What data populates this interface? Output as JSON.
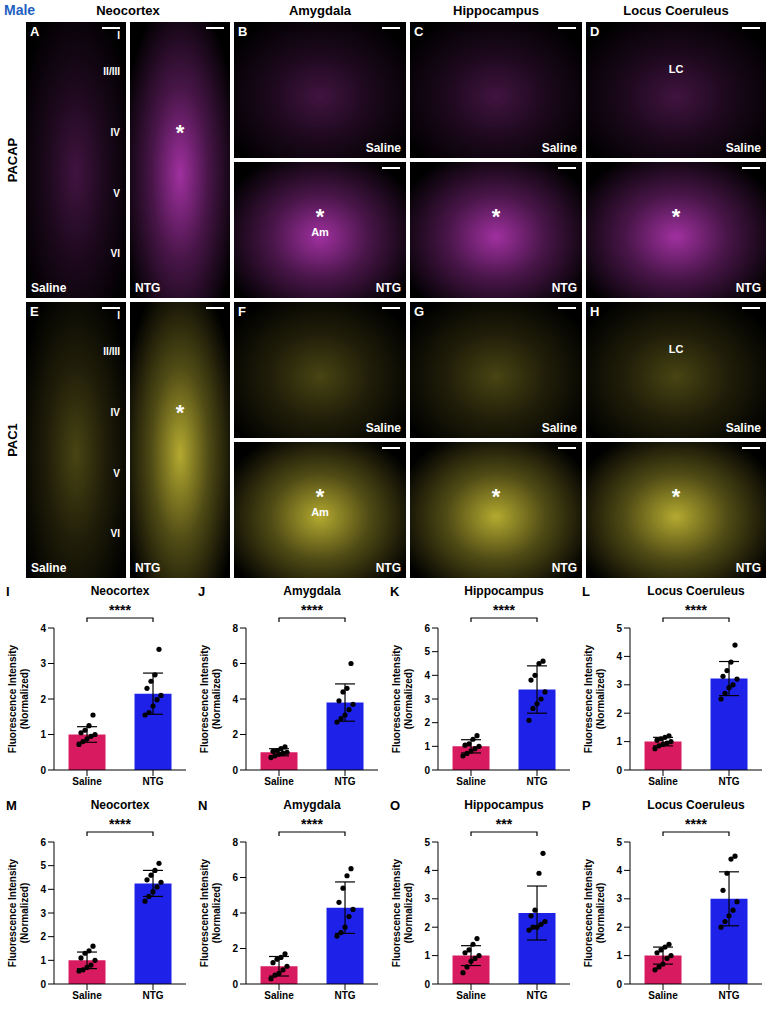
{
  "figure": {
    "sex": "Male",
    "column_titles": [
      "Neocortex",
      "Amygdala",
      "Hippocampus",
      "Locus Coeruleus"
    ],
    "row_labels": [
      "PACAP",
      "PAC1"
    ]
  },
  "image_panels": [
    {
      "letter": "A",
      "subpanels": [
        {
          "condition": "Saline",
          "layers": [
            "I",
            "II/III",
            "IV",
            "V",
            "VI"
          ]
        },
        {
          "condition": "NTG",
          "asterisk": "*"
        }
      ]
    },
    {
      "letter": "B",
      "subpanels": [
        {
          "condition": "Saline"
        },
        {
          "condition": "NTG",
          "asterisk": "*",
          "region_label": "Am"
        }
      ]
    },
    {
      "letter": "C",
      "subpanels": [
        {
          "condition": "Saline"
        },
        {
          "condition": "NTG",
          "asterisk": "*"
        }
      ]
    },
    {
      "letter": "D",
      "subpanels": [
        {
          "condition": "Saline",
          "region_label": "LC"
        },
        {
          "condition": "NTG",
          "asterisk": "*"
        }
      ]
    },
    {
      "letter": "E",
      "subpanels": [
        {
          "condition": "Saline",
          "layers": [
            "I",
            "II/III",
            "IV",
            "V",
            "VI"
          ]
        },
        {
          "condition": "NTG",
          "asterisk": "*"
        }
      ]
    },
    {
      "letter": "F",
      "subpanels": [
        {
          "condition": "Saline"
        },
        {
          "condition": "NTG",
          "asterisk": "*",
          "region_label": "Am"
        }
      ]
    },
    {
      "letter": "G",
      "subpanels": [
        {
          "condition": "Saline"
        },
        {
          "condition": "NTG",
          "asterisk": "*"
        }
      ]
    },
    {
      "letter": "H",
      "subpanels": [
        {
          "condition": "Saline",
          "region_label": "LC"
        },
        {
          "condition": "NTG",
          "asterisk": "*"
        }
      ]
    }
  ],
  "chart_data": [
    {
      "type": "bar",
      "letter": "I",
      "title": "Neocortex",
      "ylabel": "Fluorescence Intensity (Normalized)",
      "categories": [
        "Saline",
        "NTG"
      ],
      "values": [
        1.0,
        2.15
      ],
      "errors": [
        0.22,
        0.58
      ],
      "points": [
        [
          0.72,
          0.8,
          0.88,
          0.95,
          1.0,
          1.05,
          1.12,
          1.25,
          1.55
        ],
        [
          1.55,
          1.62,
          1.8,
          1.98,
          2.1,
          2.3,
          2.5,
          2.68,
          3.4
        ]
      ],
      "colors": [
        "#d81b60",
        "#1e22e8"
      ],
      "ylim": [
        0,
        4
      ],
      "yticks": [
        0,
        1,
        2,
        3,
        4
      ],
      "significance": "****"
    },
    {
      "type": "bar",
      "letter": "J",
      "title": "Amygdala",
      "ylabel": "Fluorescence Intensity (Normalized)",
      "categories": [
        "Saline",
        "NTG"
      ],
      "values": [
        1.0,
        3.8
      ],
      "errors": [
        0.2,
        1.05
      ],
      "points": [
        [
          0.7,
          0.8,
          0.9,
          0.95,
          1.0,
          1.05,
          1.1,
          1.2,
          1.3
        ],
        [
          2.7,
          2.9,
          3.1,
          3.4,
          3.7,
          3.9,
          4.4,
          4.6,
          6.0
        ]
      ],
      "colors": [
        "#d81b60",
        "#1e22e8"
      ],
      "ylim": [
        0,
        8
      ],
      "yticks": [
        0,
        2,
        4,
        6,
        8
      ],
      "significance": "****"
    },
    {
      "type": "bar",
      "letter": "K",
      "title": "Hippocampus",
      "ylabel": "Fluorescence Intensity (Normalized)",
      "categories": [
        "Saline",
        "NTG"
      ],
      "values": [
        1.0,
        3.4
      ],
      "errors": [
        0.28,
        1.0
      ],
      "points": [
        [
          0.6,
          0.7,
          0.8,
          0.9,
          1.0,
          1.05,
          1.1,
          1.3,
          1.45
        ],
        [
          2.1,
          2.6,
          2.8,
          3.0,
          3.3,
          3.8,
          4.0,
          4.5,
          4.6
        ]
      ],
      "colors": [
        "#d81b60",
        "#1e22e8"
      ],
      "ylim": [
        0,
        6
      ],
      "yticks": [
        0,
        1,
        2,
        3,
        4,
        5,
        6
      ],
      "significance": "****"
    },
    {
      "type": "bar",
      "letter": "L",
      "title": "Locus Coeruleus",
      "ylabel": "Fluorescence Intensity (Normalized)",
      "categories": [
        "Saline",
        "NTG"
      ],
      "values": [
        1.0,
        3.22
      ],
      "errors": [
        0.15,
        0.6
      ],
      "points": [
        [
          0.75,
          0.85,
          0.9,
          0.95,
          1.0,
          1.05,
          1.1,
          1.15,
          1.2
        ],
        [
          2.5,
          2.7,
          2.9,
          3.0,
          3.2,
          3.3,
          3.5,
          3.8,
          4.4
        ]
      ],
      "colors": [
        "#d81b60",
        "#1e22e8"
      ],
      "ylim": [
        0,
        5
      ],
      "yticks": [
        0,
        1,
        2,
        3,
        4,
        5
      ],
      "significance": "****"
    },
    {
      "type": "bar",
      "letter": "M",
      "title": "Neocortex",
      "ylabel": "Fluorescence Intensity (Normalized)",
      "categories": [
        "Saline",
        "NTG"
      ],
      "values": [
        1.0,
        4.25
      ],
      "errors": [
        0.35,
        0.55
      ],
      "points": [
        [
          0.55,
          0.6,
          0.7,
          0.8,
          1.0,
          1.1,
          1.3,
          1.4,
          1.6
        ],
        [
          3.5,
          3.7,
          3.9,
          4.1,
          4.3,
          4.4,
          4.6,
          4.8,
          5.1
        ]
      ],
      "colors": [
        "#d81b60",
        "#1e22e8"
      ],
      "ylim": [
        0,
        6
      ],
      "yticks": [
        0,
        1,
        2,
        3,
        4,
        5,
        6
      ],
      "significance": "****"
    },
    {
      "type": "bar",
      "letter": "N",
      "title": "Amygdala",
      "ylabel": "Fluorescence Intensity (Normalized)",
      "categories": [
        "Saline",
        "NTG"
      ],
      "values": [
        1.0,
        4.3
      ],
      "errors": [
        0.55,
        1.45
      ],
      "points": [
        [
          0.3,
          0.5,
          0.6,
          0.8,
          1.0,
          1.2,
          1.4,
          1.5,
          1.7
        ],
        [
          2.7,
          2.9,
          3.2,
          3.8,
          4.2,
          4.6,
          5.4,
          6.1,
          6.5
        ]
      ],
      "colors": [
        "#d81b60",
        "#1e22e8"
      ],
      "ylim": [
        0,
        8
      ],
      "yticks": [
        0,
        2,
        4,
        6,
        8
      ],
      "significance": "****"
    },
    {
      "type": "bar",
      "letter": "O",
      "title": "Hippocampus",
      "ylabel": "Fluorescence Intensity (Normalized)",
      "categories": [
        "Saline",
        "NTG"
      ],
      "values": [
        1.0,
        2.5
      ],
      "errors": [
        0.35,
        0.95
      ],
      "points": [
        [
          0.4,
          0.6,
          0.8,
          0.9,
          1.0,
          1.1,
          1.2,
          1.4,
          1.6
        ],
        [
          1.9,
          2.0,
          2.0,
          2.1,
          2.2,
          2.4,
          2.6,
          3.9,
          4.6
        ]
      ],
      "colors": [
        "#d81b60",
        "#1e22e8"
      ],
      "ylim": [
        0,
        5
      ],
      "yticks": [
        0,
        1,
        2,
        3,
        4,
        5
      ],
      "significance": "***"
    },
    {
      "type": "bar",
      "letter": "P",
      "title": "Locus Coeruleus",
      "ylabel": "Fluorescence Intensity (Normalized)",
      "categories": [
        "Saline",
        "NTG"
      ],
      "values": [
        1.0,
        3.0
      ],
      "errors": [
        0.3,
        0.95
      ],
      "points": [
        [
          0.5,
          0.6,
          0.7,
          0.9,
          1.0,
          1.1,
          1.2,
          1.3,
          1.4
        ],
        [
          2.0,
          2.2,
          2.4,
          2.6,
          2.9,
          3.3,
          3.9,
          4.4,
          4.5
        ]
      ],
      "colors": [
        "#d81b60",
        "#1e22e8"
      ],
      "ylim": [
        0,
        5
      ],
      "yticks": [
        0,
        1,
        2,
        3,
        4,
        5
      ],
      "significance": "****"
    }
  ]
}
